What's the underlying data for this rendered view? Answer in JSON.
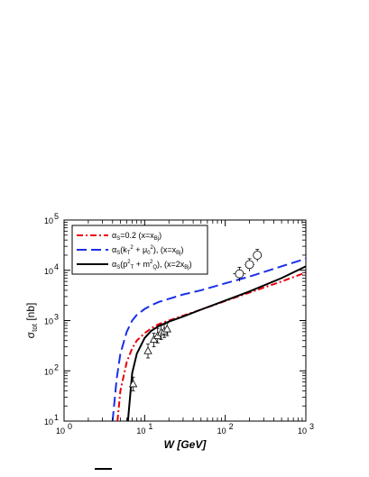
{
  "chart_data": {
    "type": "line",
    "title": "",
    "xlabel": "W [GeV]",
    "ylabel": "σ_tot [nb]",
    "ylabel_parts": {
      "main": "σ",
      "sub": "tot",
      "unit": " [nb]"
    },
    "xscale": "log",
    "yscale": "log",
    "xlim": [
      1,
      1000
    ],
    "ylim": [
      10,
      100000
    ],
    "grid": false,
    "legend_position": "top-left",
    "x_ticks": [
      {
        "value": 1,
        "label": "10",
        "sup": "0"
      },
      {
        "value": 10,
        "label": "10",
        "sup": "1"
      },
      {
        "value": 100,
        "label": "10",
        "sup": "2"
      },
      {
        "value": 1000,
        "label": "10",
        "sup": "3"
      }
    ],
    "y_ticks": [
      {
        "value": 10,
        "label": "10",
        "sup": "1"
      },
      {
        "value": 100,
        "label": "10",
        "sup": "2"
      },
      {
        "value": 1000,
        "label": "10",
        "sup": "3"
      },
      {
        "value": 10000,
        "label": "10",
        "sup": "4"
      },
      {
        "value": 100000,
        "label": "10",
        "sup": "5"
      }
    ],
    "series": [
      {
        "legend_parts": [
          {
            "t": "α"
          },
          {
            "t": "S",
            "s": "sub"
          },
          {
            "t": "=0.2 (x=x"
          },
          {
            "t": "Bj",
            "s": "sub"
          },
          {
            "t": ")"
          }
        ],
        "color": "#e8000b",
        "dash": "7,3,2,3",
        "x": [
          4.6,
          5,
          6,
          7,
          8,
          10,
          12,
          15,
          20,
          30,
          50,
          100,
          200,
          500,
          1000
        ],
        "y": [
          10,
          40,
          150,
          280,
          400,
          560,
          700,
          850,
          1000,
          1250,
          1650,
          2450,
          3600,
          6000,
          9000
        ]
      },
      {
        "legend_parts": [
          {
            "t": "α"
          },
          {
            "t": "S",
            "s": "sub"
          },
          {
            "t": "(k"
          },
          {
            "t": "T",
            "s": "sub"
          },
          {
            "t": "2",
            "s": "sup"
          },
          {
            "t": " + μ"
          },
          {
            "t": "0",
            "s": "sub"
          },
          {
            "t": "2",
            "s": "sup"
          },
          {
            "t": "), (x=x"
          },
          {
            "t": "Bj",
            "s": "sub"
          },
          {
            "t": ")"
          }
        ],
        "color": "#1a2fe8",
        "dash": "11,5",
        "x": [
          4.0,
          4.5,
          5,
          6,
          7,
          8,
          10,
          12,
          15,
          20,
          30,
          50,
          100,
          200,
          500,
          1000
        ],
        "y": [
          10,
          70,
          220,
          600,
          1000,
          1300,
          1700,
          2000,
          2350,
          2700,
          3300,
          4000,
          5500,
          7500,
          12000,
          17000
        ]
      },
      {
        "legend_parts": [
          {
            "t": "α"
          },
          {
            "t": "S",
            "s": "sub"
          },
          {
            "t": "(p"
          },
          {
            "t": "2",
            "s": "sup"
          },
          {
            "t": "T",
            "s": "sub"
          },
          {
            "t": " + m"
          },
          {
            "t": "2",
            "s": "sup"
          },
          {
            "t": "Q",
            "s": "sub"
          },
          {
            "t": "), (x=2x"
          },
          {
            "t": "Bj",
            "s": "sub"
          },
          {
            "t": ")"
          }
        ],
        "color": "#000000",
        "dash": "",
        "x": [
          6.2,
          7,
          8,
          10,
          12,
          15,
          20,
          30,
          50,
          100,
          200,
          500,
          1000
        ],
        "y": [
          10,
          90,
          220,
          450,
          620,
          780,
          950,
          1200,
          1650,
          2500,
          3800,
          7000,
          12000
        ]
      }
    ],
    "data_points": {
      "triangles": [
        {
          "x": 7.2,
          "y": 55,
          "yerr": [
            40,
            75
          ]
        },
        {
          "x": 11,
          "y": 250,
          "yerr": [
            180,
            340
          ]
        },
        {
          "x": 13,
          "y": 420,
          "yerr": [
            300,
            560
          ]
        },
        {
          "x": 14.5,
          "y": 500,
          "yerr": [
            360,
            700
          ]
        },
        {
          "x": 16,
          "y": 580,
          "yerr": [
            420,
            800
          ]
        },
        {
          "x": 17.5,
          "y": 620,
          "yerr": [
            460,
            850
          ]
        },
        {
          "x": 19,
          "y": 680,
          "yerr": [
            500,
            900
          ]
        }
      ],
      "circles": [
        {
          "x": 150,
          "y": 8500,
          "xerr": [
            125,
            180
          ],
          "yerr": [
            6000,
            11500
          ]
        },
        {
          "x": 200,
          "y": 13000,
          "xerr": [
            175,
            230
          ],
          "yerr": [
            9500,
            17000
          ]
        },
        {
          "x": 250,
          "y": 20000,
          "xerr": [
            220,
            285
          ],
          "yerr": [
            15000,
            26000
          ]
        }
      ]
    }
  }
}
